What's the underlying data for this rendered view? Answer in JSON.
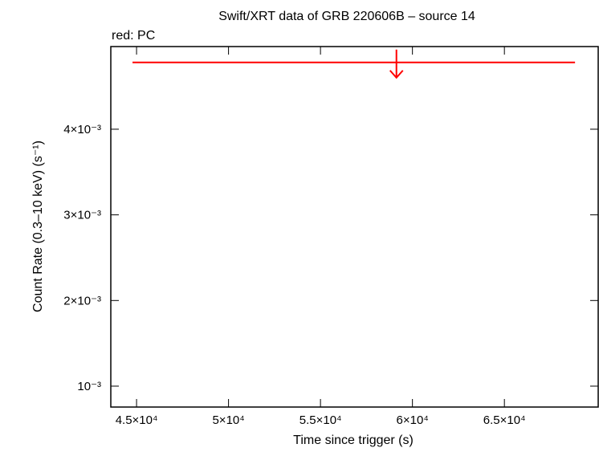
{
  "chart_data": {
    "type": "upper-limit",
    "title": "Swift/XRT data of GRB 220606B – source 14",
    "subtitle": "red: PC",
    "x_label": "Time since trigger (s)",
    "y_label": "Count Rate (0.3–10 keV) (s⁻¹)",
    "xlim": [
      43600,
      70100
    ],
    "ylim": [
      0.000756,
      0.004965
    ],
    "xticks": [
      {
        "value": 45000,
        "label": "4.5×10⁴"
      },
      {
        "value": 50000,
        "label": "5×10⁴"
      },
      {
        "value": 55000,
        "label": "5.5×10⁴"
      },
      {
        "value": 60000,
        "label": "6×10⁴"
      },
      {
        "value": 65000,
        "label": "6.5×10⁴"
      }
    ],
    "yticks": [
      {
        "value": 0.001,
        "label": "10⁻³"
      },
      {
        "value": 0.002,
        "label": "2×10⁻³"
      },
      {
        "value": 0.003,
        "label": "3×10⁻³"
      },
      {
        "value": 0.004,
        "label": "4×10⁻³"
      }
    ],
    "series": [
      {
        "color": "#ff0000",
        "x": [
          59130
        ],
        "x_start": [
          44780
        ],
        "x_end": [
          68840
        ],
        "values": [
          0.00478
        ]
      }
    ]
  }
}
